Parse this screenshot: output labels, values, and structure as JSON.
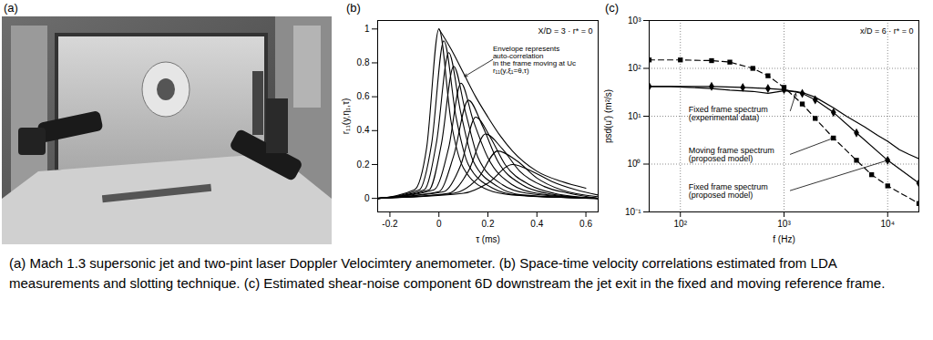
{
  "figure": {
    "panel_labels": [
      "(a)",
      "(b)",
      "(c)"
    ],
    "caption": "(a) Mach 1.3 supersonic jet and two-pint laser Doppler Velocimtery anemometer. (b) Space-time velocity correlations estimated from LDA measurements and slotting technique. (c) Estimated shear-noise component 6D downstream the jet exit in the fixed and moving reference frame."
  },
  "chart_data": [
    {
      "type": "line",
      "xlabel": "τ (ms)",
      "ylabel": "r₁₁(y,η₁,τ)",
      "annotations": [
        "X/D = 3 · r* = 0",
        "Envelope represents\nauto-correlation\nin the frame moving at Uc\nr₁₁(y,ξ₁=θ,τ)"
      ],
      "xlim": [
        -0.25,
        0.65
      ],
      "ylim": [
        -0.08,
        1.05
      ],
      "xticks": [
        -0.2,
        0,
        0.2,
        0.4,
        0.6
      ],
      "yticks": [
        0,
        0.2,
        0.4,
        0.6,
        0.8,
        1
      ],
      "grid": false,
      "color": "#000000",
      "series": [
        {
          "x": [
            -0.25,
            -0.1,
            -0.05,
            0,
            0.05,
            0.1,
            0.2,
            0.3,
            0.65
          ],
          "values": [
            0,
            0.05,
            0.3,
            1.0,
            0.45,
            0.18,
            0.05,
            0.02,
            0
          ]
        },
        {
          "x": [
            -0.25,
            -0.08,
            -0.03,
            0.02,
            0.07,
            0.12,
            0.22,
            0.32,
            0.65
          ],
          "values": [
            0,
            0.05,
            0.32,
            0.93,
            0.48,
            0.2,
            0.06,
            0.02,
            0
          ]
        },
        {
          "x": [
            -0.25,
            -0.06,
            -0.01,
            0.04,
            0.09,
            0.14,
            0.24,
            0.34,
            0.65
          ],
          "values": [
            0,
            0.05,
            0.33,
            0.86,
            0.5,
            0.22,
            0.07,
            0.02,
            0
          ]
        },
        {
          "x": [
            -0.25,
            -0.04,
            0.01,
            0.06,
            0.11,
            0.16,
            0.26,
            0.36,
            0.65
          ],
          "values": [
            0,
            0.05,
            0.32,
            0.78,
            0.5,
            0.24,
            0.08,
            0.03,
            0
          ]
        },
        {
          "x": [
            -0.25,
            -0.02,
            0.04,
            0.09,
            0.14,
            0.2,
            0.3,
            0.4,
            0.65
          ],
          "values": [
            0,
            0.05,
            0.3,
            0.68,
            0.46,
            0.24,
            0.08,
            0.03,
            0
          ]
        },
        {
          "x": [
            -0.25,
            0,
            0.06,
            0.12,
            0.18,
            0.24,
            0.34,
            0.44,
            0.65
          ],
          "values": [
            0,
            0.04,
            0.25,
            0.58,
            0.42,
            0.22,
            0.08,
            0.03,
            0
          ]
        },
        {
          "x": [
            -0.25,
            0.02,
            0.09,
            0.15,
            0.21,
            0.27,
            0.37,
            0.47,
            0.65
          ],
          "values": [
            0,
            0.04,
            0.2,
            0.48,
            0.36,
            0.2,
            0.08,
            0.03,
            0
          ]
        },
        {
          "x": [
            -0.25,
            0.04,
            0.12,
            0.19,
            0.26,
            0.33,
            0.43,
            0.53,
            0.65
          ],
          "values": [
            0,
            0.03,
            0.16,
            0.38,
            0.29,
            0.16,
            0.07,
            0.03,
            0
          ]
        },
        {
          "x": [
            -0.25,
            0.06,
            0.16,
            0.24,
            0.32,
            0.4,
            0.5,
            0.65
          ],
          "values": [
            0,
            0.03,
            0.12,
            0.28,
            0.22,
            0.12,
            0.05,
            0.01
          ]
        },
        {
          "x": [
            -0.25,
            0.1,
            0.2,
            0.3,
            0.38,
            0.46,
            0.56,
            0.65
          ],
          "values": [
            0,
            0.03,
            0.09,
            0.2,
            0.16,
            0.1,
            0.05,
            0.02
          ]
        },
        {
          "x": [
            0,
            0.05,
            0.1,
            0.15,
            0.2,
            0.25,
            0.3,
            0.4,
            0.5,
            0.6
          ],
          "values": [
            1.0,
            0.88,
            0.74,
            0.6,
            0.48,
            0.37,
            0.28,
            0.16,
            0.1,
            0.06
          ]
        }
      ]
    },
    {
      "type": "line",
      "xlabel": "f (Hz)",
      "ylabel": "psd(u') (m²/s)",
      "annotations": [
        "x/D = 6 · r* = 0"
      ],
      "log": true,
      "grid": true,
      "color": "#000000",
      "xlim": [
        50,
        20000
      ],
      "ylim": [
        0.1,
        1000
      ],
      "xticks": [
        {
          "value": 100,
          "label": "10²"
        },
        {
          "value": 1000,
          "label": "10³"
        },
        {
          "value": 10000,
          "label": "10⁴"
        }
      ],
      "yticks": [
        {
          "value": 0.1,
          "label": "10⁻¹"
        },
        {
          "value": 1,
          "label": "10⁰"
        },
        {
          "value": 10,
          "label": "10¹"
        },
        {
          "value": 100,
          "label": "10²"
        },
        {
          "value": 1000,
          "label": "10³"
        }
      ],
      "series": [
        {
          "name": "Fixed frame spectrum\n(experimental data)",
          "line_style": "solid",
          "marker": "none",
          "x": [
            50,
            80,
            120,
            200,
            300,
            500,
            700,
            1000,
            1300,
            1600,
            2000,
            3000,
            4000,
            6000,
            8000,
            10000,
            13000,
            16000,
            20000
          ],
          "values": [
            42,
            42,
            40,
            38,
            35,
            33,
            30,
            34,
            33,
            30,
            25,
            15,
            10,
            6,
            4,
            3,
            2,
            1.6,
            1.3
          ]
        },
        {
          "name": "Moving frame spectrum\n(proposed model)",
          "line_style": "dashed",
          "marker": "square",
          "x": [
            50,
            100,
            200,
            300,
            500,
            700,
            1000,
            1500,
            2000,
            3000,
            5000,
            7000,
            10000,
            20000
          ],
          "values": [
            150,
            150,
            145,
            135,
            100,
            70,
            40,
            18,
            9,
            3.5,
            1.2,
            0.6,
            0.35,
            0.15
          ]
        },
        {
          "name": "Fixed frame spectrum\n(proposed model)",
          "line_style": "solid",
          "marker": "diamond",
          "x": [
            50,
            200,
            400,
            700,
            1000,
            1500,
            2000,
            3000,
            5000,
            10000,
            20000
          ],
          "values": [
            42,
            42,
            40,
            38,
            36,
            30,
            22,
            12,
            4.5,
            1.2,
            0.4
          ]
        }
      ]
    }
  ]
}
